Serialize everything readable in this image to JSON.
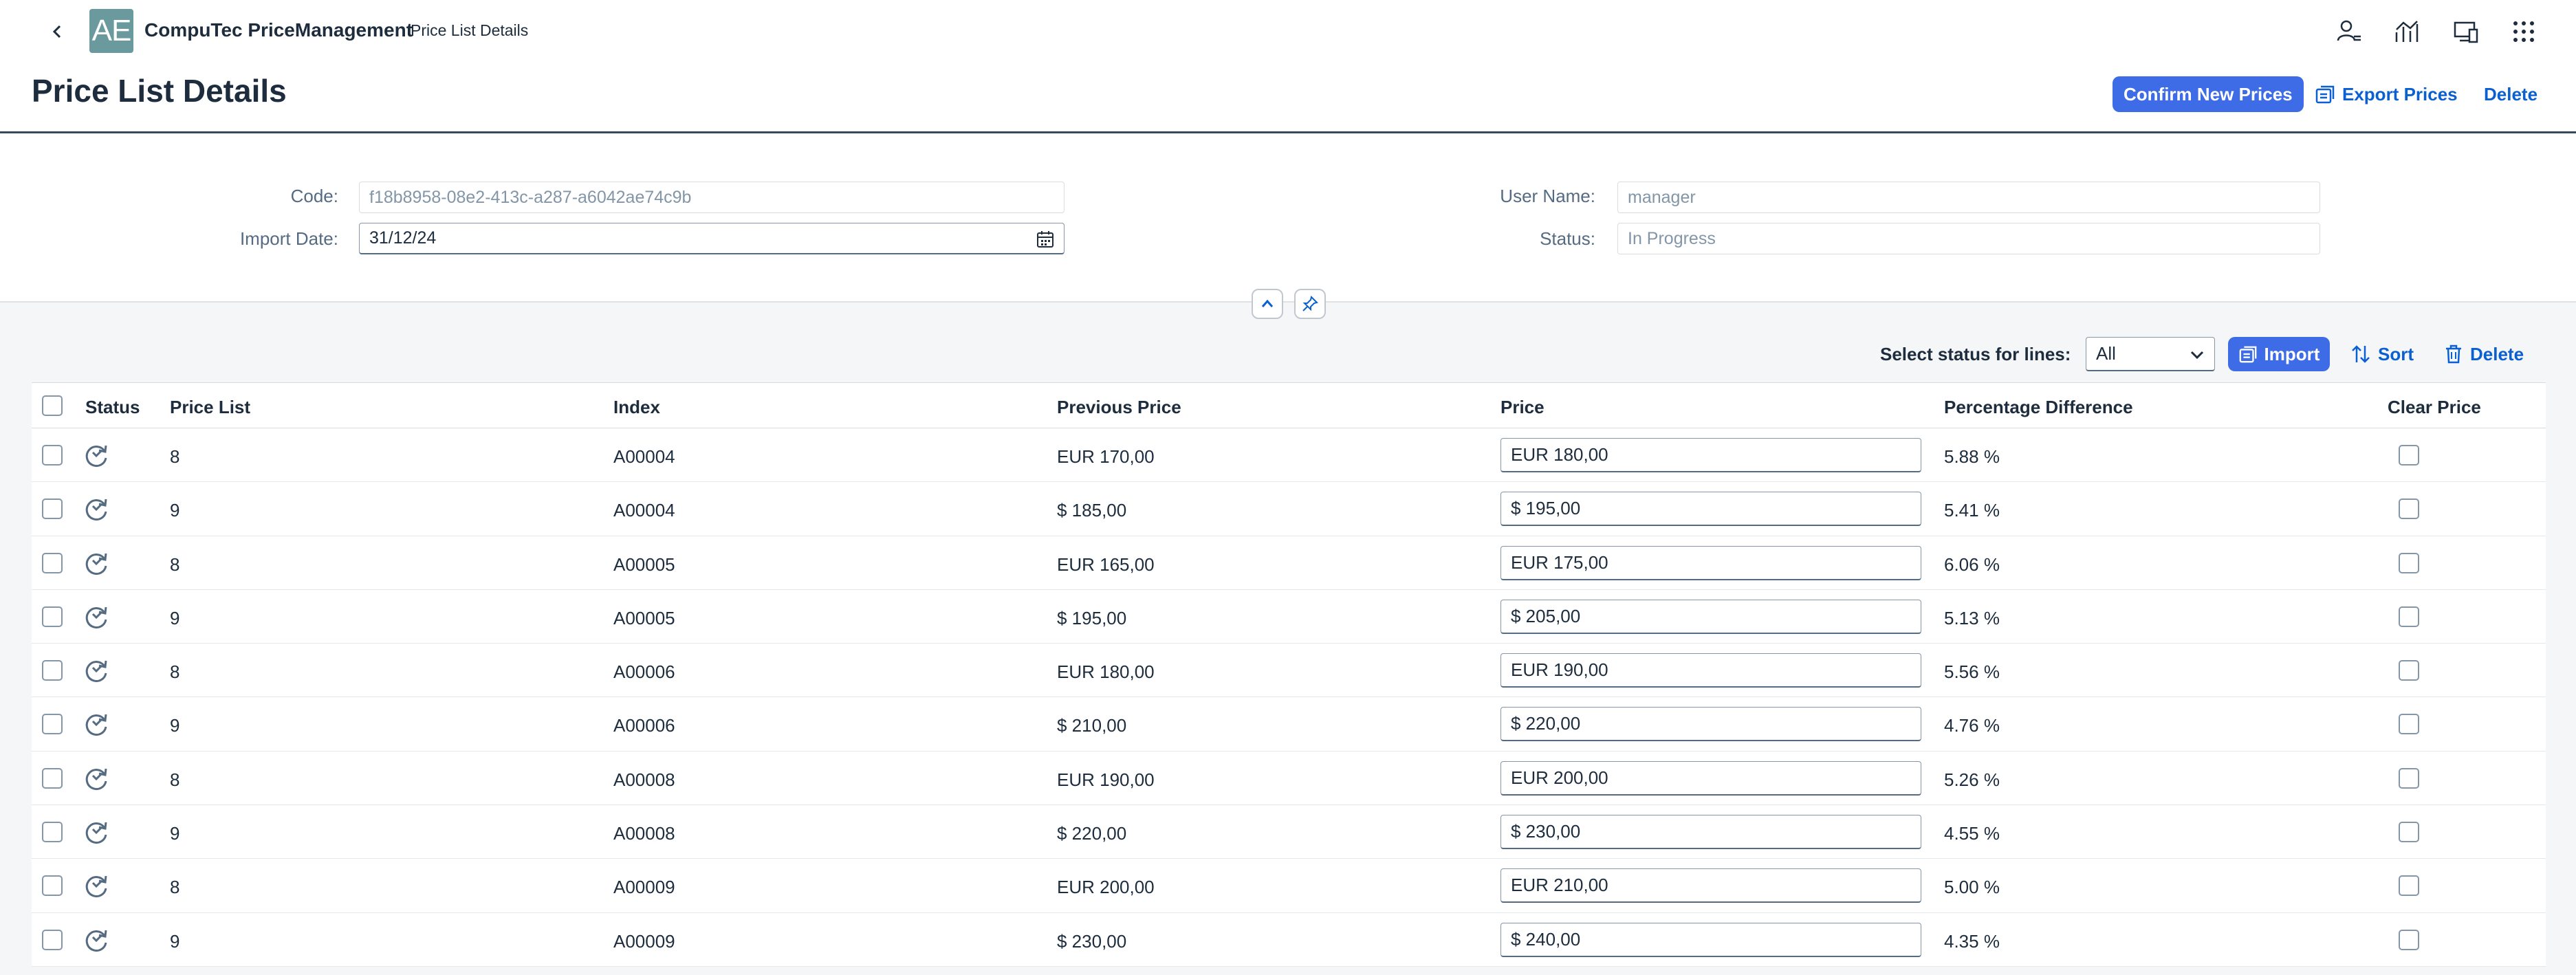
{
  "shell": {
    "logo_text": "AE",
    "app_title": "CompuTec PriceManagement",
    "subtitle": "Price List Details"
  },
  "header": {
    "title": "Price List Details",
    "confirm_label": "Confirm New Prices",
    "export_label": "Export Prices",
    "delete_label": "Delete"
  },
  "form": {
    "code_label": "Code:",
    "code_value": "f18b8958-08e2-413c-a287-a6042ae74c9b",
    "import_date_label": "Import Date:",
    "import_date_value": "31/12/24",
    "user_label": "User Name:",
    "user_value": "manager",
    "status_label": "Status:",
    "status_value": "In Progress"
  },
  "toolbar": {
    "status_select_label": "Select status for lines:",
    "status_select_value": "All",
    "import_label": "Import",
    "sort_label": "Sort",
    "delete_label": "Delete"
  },
  "table": {
    "headers": {
      "status": "Status",
      "price_list": "Price List",
      "index": "Index",
      "previous_price": "Previous Price",
      "price": "Price",
      "percentage_difference": "Percentage Difference",
      "clear_price": "Clear Price"
    },
    "rows": [
      {
        "price_list": "8",
        "index": "A00004",
        "previous_price": "EUR 170,00",
        "price": "EUR 180,00",
        "diff": "5.88 %"
      },
      {
        "price_list": "9",
        "index": "A00004",
        "previous_price": "$ 185,00",
        "price": "$ 195,00",
        "diff": "5.41 %"
      },
      {
        "price_list": "8",
        "index": "A00005",
        "previous_price": "EUR 165,00",
        "price": "EUR 175,00",
        "diff": "6.06 %"
      },
      {
        "price_list": "9",
        "index": "A00005",
        "previous_price": "$ 195,00",
        "price": "$ 205,00",
        "diff": "5.13 %"
      },
      {
        "price_list": "8",
        "index": "A00006",
        "previous_price": "EUR 180,00",
        "price": "EUR 190,00",
        "diff": "5.56 %"
      },
      {
        "price_list": "9",
        "index": "A00006",
        "previous_price": "$ 210,00",
        "price": "$ 220,00",
        "diff": "4.76 %"
      },
      {
        "price_list": "8",
        "index": "A00008",
        "previous_price": "EUR 190,00",
        "price": "EUR 200,00",
        "diff": "5.26 %"
      },
      {
        "price_list": "9",
        "index": "A00008",
        "previous_price": "$ 220,00",
        "price": "$ 230,00",
        "diff": "4.55 %"
      },
      {
        "price_list": "8",
        "index": "A00009",
        "previous_price": "EUR 200,00",
        "price": "EUR 210,00",
        "diff": "5.00 %"
      },
      {
        "price_list": "9",
        "index": "A00009",
        "previous_price": "$ 230,00",
        "price": "$ 240,00",
        "diff": "4.35 %"
      }
    ]
  },
  "colors": {
    "accent": "#3e6ce7",
    "link": "#0a5fd1",
    "header_border": "#354a5f",
    "logo_bg": "#6a9a9d"
  },
  "icons": {
    "back": "chevron-left-icon",
    "status": "sync-icon",
    "calendar": "calendar-icon",
    "import": "import-icon",
    "sort": "sort-icon",
    "delete": "trash-icon"
  }
}
